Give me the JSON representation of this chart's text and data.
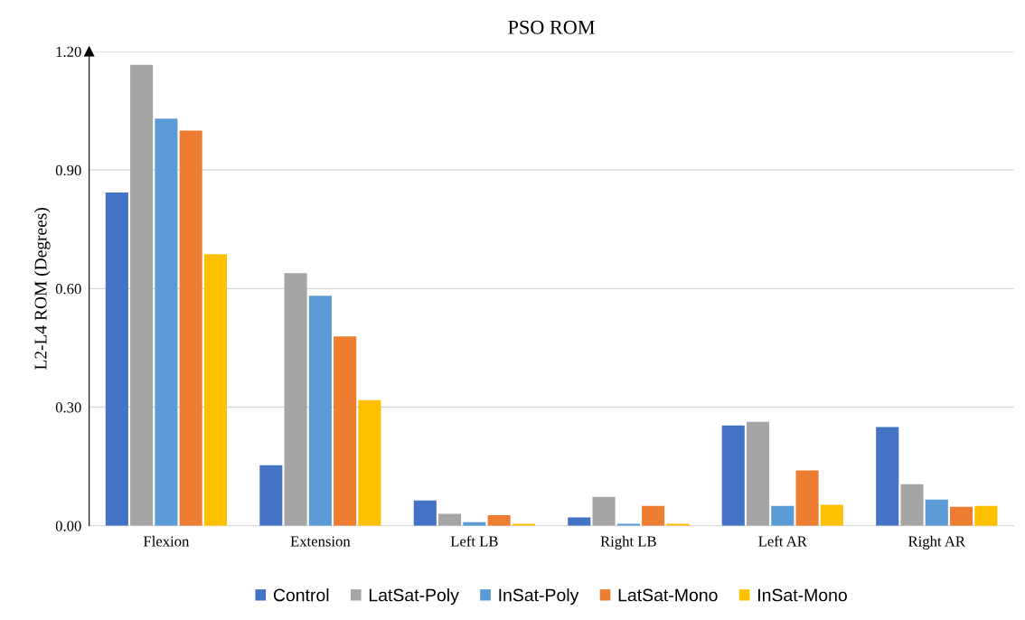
{
  "chart_data": {
    "type": "bar",
    "title": "PSO ROM",
    "ylabel": "L2-L4 ROM (Degrees)",
    "categories": [
      "Flexion",
      "Extension",
      "Left LB",
      "Right LB",
      "Left AR",
      "Right AR"
    ],
    "series": [
      {
        "name": "Control",
        "color": "#4472c4",
        "values": [
          0.843,
          0.153,
          0.064,
          0.021,
          0.254,
          0.25
        ]
      },
      {
        "name": "LatSat-Poly",
        "color": "#a5a5a5",
        "values": [
          1.166,
          0.639,
          0.03,
          0.073,
          0.263,
          0.105
        ]
      },
      {
        "name": "InSat-Poly",
        "color": "#5b9bd5",
        "values": [
          1.03,
          0.582,
          0.009,
          0.005,
          0.05,
          0.066
        ]
      },
      {
        "name": "LatSat-Mono",
        "color": "#ed7d31",
        "values": [
          1.0,
          0.479,
          0.027,
          0.05,
          0.14,
          0.048
        ]
      },
      {
        "name": "InSat-Mono",
        "color": "#ffc000",
        "values": [
          0.687,
          0.318,
          0.005,
          0.005,
          0.053,
          0.05
        ]
      }
    ],
    "ylim": [
      0,
      1.2
    ],
    "yticks": [
      {
        "value": 0,
        "label": "0.00"
      },
      {
        "value": 0.3,
        "label": "0.30"
      },
      {
        "value": 0.6,
        "label": "0.60"
      },
      {
        "value": 0.9,
        "label": "0.90"
      },
      {
        "value": 1.2,
        "label": "1.20"
      }
    ],
    "grid": "y",
    "legend": "bottom"
  }
}
